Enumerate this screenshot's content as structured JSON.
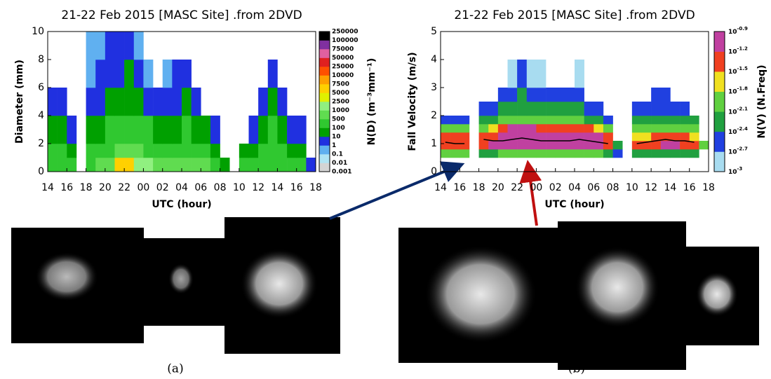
{
  "chart_data": [
    {
      "type": "heatmap",
      "title": "21-22 Feb 2015 [MASC Site] .from 2DVD",
      "xlabel": "UTC (hour)",
      "ylabel": "Diameter (mm)",
      "colorbar_label": "N(D) (m⁻³mm⁻¹)",
      "caption": "(a)",
      "xlim": [
        14,
        42
      ],
      "ylim": [
        0,
        10
      ],
      "xticks": [
        14,
        16,
        18,
        20,
        22,
        {
          "value": 24,
          "label": "00"
        },
        {
          "value": 26,
          "label": "02"
        },
        {
          "value": 28,
          "label": "04"
        },
        {
          "value": 30,
          "label": "06"
        },
        {
          "value": 32,
          "label": "08"
        },
        {
          "value": 34,
          "label": "10"
        },
        {
          "value": 36,
          "label": "12"
        },
        {
          "value": 38,
          "label": "14"
        },
        {
          "value": 40,
          "label": "16"
        },
        {
          "value": 42,
          "label": "18"
        }
      ],
      "yticks": [
        0,
        2,
        4,
        6,
        8,
        10
      ],
      "cticks": [
        0.001,
        0.01,
        0.1,
        1,
        10,
        100,
        500,
        1000,
        2500,
        5000,
        7500,
        10000,
        25000,
        50000,
        75000,
        100000,
        250000
      ],
      "colors": [
        "#d4d4d4",
        "#b0e4f4",
        "#60b0f0",
        "#2030e0",
        "#00a000",
        "#30c830",
        "#60dc50",
        "#90f080",
        "#e0f000",
        "#ffd000",
        "#ffa000",
        "#ff5000",
        "#e02020",
        "#e060a0",
        "#8030a0",
        "#000000"
      ],
      "xbins": [
        14,
        15,
        16,
        17,
        18,
        19,
        20,
        21,
        22,
        23,
        24,
        25,
        26,
        27,
        28,
        29,
        30,
        31,
        32,
        33,
        34,
        35,
        36,
        37,
        38,
        39,
        40,
        41,
        42
      ],
      "ybins": [
        0,
        1,
        2,
        4,
        6,
        8,
        10
      ],
      "z": [
        [
          100,
          100,
          100,
          null,
          100,
          500,
          500,
          5000,
          5000,
          1000,
          1000,
          500,
          500,
          500,
          500,
          500,
          500,
          100,
          10,
          null,
          100,
          100,
          100,
          100,
          100,
          100,
          100,
          1
        ],
        [
          100,
          100,
          10,
          null,
          100,
          100,
          100,
          500,
          500,
          500,
          100,
          100,
          100,
          100,
          100,
          100,
          100,
          10,
          null,
          null,
          10,
          10,
          100,
          100,
          100,
          10,
          10,
          null
        ],
        [
          10,
          10,
          1,
          null,
          10,
          10,
          100,
          100,
          100,
          100,
          100,
          10,
          10,
          10,
          100,
          10,
          10,
          1,
          null,
          null,
          null,
          1,
          10,
          100,
          10,
          1,
          1,
          null
        ],
        [
          1,
          1,
          null,
          null,
          1,
          1,
          10,
          10,
          10,
          10,
          1,
          1,
          1,
          1,
          10,
          1,
          null,
          null,
          null,
          null,
          null,
          null,
          1,
          10,
          1,
          null,
          null,
          null
        ],
        [
          null,
          null,
          null,
          null,
          0.1,
          1,
          1,
          1,
          10,
          1,
          0.1,
          null,
          0.1,
          1,
          1,
          null,
          null,
          null,
          null,
          null,
          null,
          null,
          null,
          1,
          null,
          null,
          null,
          null
        ],
        [
          null,
          null,
          null,
          null,
          0.1,
          0.1,
          1,
          1,
          1,
          0.1,
          null,
          null,
          null,
          null,
          null,
          null,
          null,
          null,
          null,
          null,
          null,
          null,
          null,
          null,
          null,
          null,
          null,
          null
        ]
      ]
    },
    {
      "type": "heatmap",
      "title": "21-22 Feb 2015 [MASC Site] .from 2DVD",
      "xlabel": "UTC (hour)",
      "ylabel": "Fall Velocity (m/s)",
      "colorbar_label": "N(V) (N.Freq)",
      "caption": "(b)",
      "xlim": [
        14,
        42
      ],
      "ylim": [
        0,
        5
      ],
      "xticks": [
        14,
        16,
        18,
        20,
        22,
        {
          "value": 24,
          "label": "00"
        },
        {
          "value": 26,
          "label": "02"
        },
        {
          "value": 28,
          "label": "04"
        },
        {
          "value": 30,
          "label": "06"
        },
        {
          "value": 32,
          "label": "08"
        },
        {
          "value": 34,
          "label": "10"
        },
        {
          "value": 36,
          "label": "12"
        },
        {
          "value": 38,
          "label": "14"
        },
        {
          "value": 40,
          "label": "16"
        },
        {
          "value": 42,
          "label": "18"
        }
      ],
      "yticks": [
        0,
        1,
        2,
        3,
        4,
        5
      ],
      "cticks": [
        {
          "value": -3,
          "label": "10"
        },
        {
          "value": -2.7,
          "label": "10"
        },
        {
          "value": -2.4,
          "label": "10"
        },
        {
          "value": -2.1,
          "label": "10"
        },
        {
          "value": -1.8,
          "label": "10"
        },
        {
          "value": -1.5,
          "label": "10"
        },
        {
          "value": -1.2,
          "label": "10"
        },
        {
          "value": -0.9,
          "label": "10"
        }
      ],
      "colors": [
        "#a8dcf0",
        "#2040e0",
        "#20a040",
        "#60d040",
        "#f0e020",
        "#f04020",
        "#c040a0"
      ],
      "xbins": [
        14,
        15,
        16,
        17,
        18,
        19,
        20,
        21,
        22,
        23,
        24,
        25,
        26,
        27,
        28,
        29,
        30,
        31,
        32,
        33,
        34,
        35,
        36,
        37,
        38,
        39,
        40,
        41,
        42
      ],
      "ybins": [
        0.5,
        0.8,
        1.1,
        1.4,
        1.7,
        2,
        2.5,
        3,
        4
      ],
      "z": [
        [
          -2.1,
          -2.1,
          -2.1,
          null,
          -2.4,
          -2.4,
          -2.1,
          -2.1,
          -2.1,
          -2.1,
          -2.1,
          -2.1,
          -2.1,
          -2.1,
          -2.1,
          -2.1,
          -2.1,
          -2.4,
          -2.7,
          null,
          -2.4,
          -2.4,
          -2.4,
          -2.4,
          -2.4,
          -2.4,
          -2.4,
          null
        ],
        [
          -1.5,
          -1.5,
          -1.5,
          null,
          -1.5,
          -1.2,
          -1.2,
          -1.2,
          -1.2,
          -1.2,
          -1.2,
          -1.2,
          -1.2,
          -1.2,
          -1.2,
          -1.2,
          -1.2,
          -1.5,
          -2.4,
          null,
          -1.5,
          -1.5,
          -1.5,
          -1.2,
          -1.2,
          -1.5,
          -1.5,
          -2.1
        ],
        [
          -1.5,
          -1.5,
          -1.5,
          null,
          -1.5,
          -1.5,
          -1.2,
          -1.2,
          -1.2,
          -1.2,
          -1.2,
          -1.2,
          -1.2,
          -1.2,
          -1.2,
          -1.2,
          -1.2,
          -1.5,
          null,
          null,
          -1.8,
          -1.8,
          -1.5,
          -1.5,
          -1.5,
          -1.5,
          -1.8,
          null
        ],
        [
          -2.1,
          -2.1,
          -2.1,
          null,
          -2.1,
          -1.8,
          -1.5,
          -1.2,
          -1.2,
          -1.2,
          -1.5,
          -1.5,
          -1.5,
          -1.5,
          -1.5,
          -1.5,
          -1.8,
          -2.1,
          null,
          null,
          -2.1,
          -2.1,
          -2.1,
          -2.1,
          -2.1,
          -2.1,
          -2.1,
          null
        ],
        [
          -2.7,
          -2.7,
          -2.7,
          null,
          -2.4,
          -2.4,
          -2.1,
          -2.1,
          -2.1,
          -2.1,
          -2.1,
          -2.1,
          -2.1,
          -2.1,
          -2.1,
          -2.4,
          -2.4,
          -2.7,
          null,
          null,
          -2.4,
          -2.4,
          -2.4,
          -2.4,
          -2.4,
          -2.4,
          -2.4,
          null
        ],
        [
          null,
          null,
          null,
          null,
          -2.7,
          -2.7,
          -2.4,
          -2.4,
          -2.4,
          -2.4,
          -2.4,
          -2.4,
          -2.4,
          -2.4,
          -2.4,
          -2.7,
          -2.7,
          null,
          null,
          null,
          -2.7,
          -2.7,
          -2.7,
          -2.7,
          -2.7,
          -2.7,
          null,
          null
        ],
        [
          null,
          null,
          null,
          null,
          null,
          null,
          -2.7,
          -2.7,
          -2.4,
          -2.7,
          -2.7,
          -2.7,
          -2.7,
          -2.7,
          -2.7,
          null,
          null,
          null,
          null,
          null,
          null,
          null,
          -2.7,
          -2.7,
          null,
          null,
          null,
          null
        ],
        [
          null,
          null,
          null,
          null,
          null,
          null,
          null,
          -3,
          -2.7,
          -3,
          -3,
          null,
          null,
          null,
          -3,
          null,
          null,
          null,
          null,
          null,
          null,
          null,
          null,
          null,
          null,
          null,
          null,
          null
        ]
      ],
      "line_x": [
        14.5,
        15.5,
        16.5,
        17.5,
        18.5,
        19.5,
        20.5,
        21.5,
        22.5,
        23.5,
        24.5,
        25.5,
        26.5,
        27.5,
        28.5,
        29.5,
        30.5,
        31.5,
        32.5,
        33.5,
        34.5,
        35.5,
        36.5,
        37.5,
        38.5,
        39.5,
        40.5,
        41.5
      ],
      "line_values": [
        1.05,
        1.0,
        1.0,
        null,
        1.15,
        1.1,
        1.1,
        1.15,
        1.2,
        1.15,
        1.1,
        1.1,
        1.1,
        1.1,
        1.15,
        1.1,
        1.05,
        1.0,
        null,
        null,
        1.0,
        1.05,
        1.1,
        1.15,
        1.1,
        1.1,
        1.05,
        null
      ]
    }
  ]
}
